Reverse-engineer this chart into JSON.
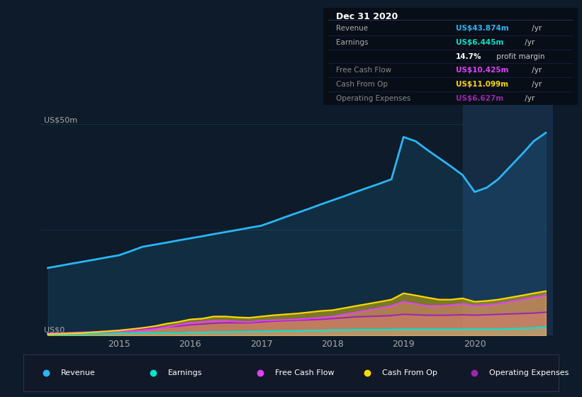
{
  "bg_color": "#0d1b2a",
  "chart_bg": "#0d1b2a",
  "title": "Dec 31 2020",
  "ylabel_top": "US$50m",
  "ylabel_bottom": "US$0",
  "x_ticks": [
    2015,
    2016,
    2017,
    2018,
    2019,
    2020
  ],
  "series": {
    "Revenue": {
      "color": "#29b6f6",
      "x": [
        2014.0,
        2014.17,
        2014.33,
        2014.5,
        2014.67,
        2014.83,
        2015.0,
        2015.17,
        2015.33,
        2015.5,
        2015.67,
        2015.83,
        2016.0,
        2016.17,
        2016.33,
        2016.5,
        2016.67,
        2016.83,
        2017.0,
        2017.17,
        2017.33,
        2017.5,
        2017.67,
        2017.83,
        2018.0,
        2018.17,
        2018.33,
        2018.5,
        2018.67,
        2018.83,
        2019.0,
        2019.17,
        2019.33,
        2019.5,
        2019.67,
        2019.83,
        2020.0,
        2020.17,
        2020.33,
        2020.5,
        2020.67,
        2020.83,
        2021.0
      ],
      "y": [
        16,
        16.5,
        17,
        17.5,
        18,
        18.5,
        19,
        20,
        21,
        21.5,
        22,
        22.5,
        23,
        23.5,
        24,
        24.5,
        25,
        25.5,
        26,
        27,
        28,
        29,
        30,
        31,
        32,
        33,
        34,
        35,
        36,
        37,
        47,
        46,
        44,
        42,
        40,
        38,
        34,
        35,
        37,
        40,
        43,
        46,
        48
      ]
    },
    "Earnings": {
      "color": "#00e5cc",
      "x": [
        2014.0,
        2014.17,
        2014.33,
        2014.5,
        2014.67,
        2014.83,
        2015.0,
        2015.17,
        2015.33,
        2015.5,
        2015.67,
        2015.83,
        2016.0,
        2016.17,
        2016.33,
        2016.5,
        2016.67,
        2016.83,
        2017.0,
        2017.17,
        2017.33,
        2017.5,
        2017.67,
        2017.83,
        2018.0,
        2018.17,
        2018.33,
        2018.5,
        2018.67,
        2018.83,
        2019.0,
        2019.17,
        2019.33,
        2019.5,
        2019.67,
        2019.83,
        2020.0,
        2020.17,
        2020.33,
        2020.5,
        2020.67,
        2020.83,
        2021.0
      ],
      "y": [
        0.2,
        0.2,
        0.3,
        0.3,
        0.4,
        0.4,
        0.5,
        0.5,
        0.6,
        0.6,
        0.6,
        0.6,
        0.7,
        0.7,
        0.8,
        0.8,
        0.9,
        0.9,
        1.0,
        1.0,
        1.1,
        1.1,
        1.2,
        1.2,
        1.3,
        1.3,
        1.4,
        1.4,
        1.4,
        1.4,
        1.5,
        1.5,
        1.5,
        1.5,
        1.5,
        1.5,
        1.5,
        1.5,
        1.5,
        1.6,
        1.7,
        1.8,
        2.0
      ]
    },
    "Free Cash Flow": {
      "color": "#e040fb",
      "x": [
        2014.0,
        2014.17,
        2014.33,
        2014.5,
        2014.67,
        2014.83,
        2015.0,
        2015.17,
        2015.33,
        2015.5,
        2015.67,
        2015.83,
        2016.0,
        2016.17,
        2016.33,
        2016.5,
        2016.67,
        2016.83,
        2017.0,
        2017.17,
        2017.33,
        2017.5,
        2017.67,
        2017.83,
        2018.0,
        2018.17,
        2018.33,
        2018.5,
        2018.67,
        2018.83,
        2019.0,
        2019.17,
        2019.33,
        2019.5,
        2019.67,
        2019.83,
        2020.0,
        2020.17,
        2020.33,
        2020.5,
        2020.67,
        2020.83,
        2021.0
      ],
      "y": [
        0.5,
        0.5,
        0.6,
        0.7,
        0.8,
        0.9,
        1.0,
        1.1,
        1.2,
        1.5,
        2.0,
        2.5,
        3.0,
        3.2,
        3.5,
        3.5,
        3.3,
        3.2,
        3.5,
        3.6,
        3.7,
        3.8,
        4.0,
        4.2,
        4.5,
        5.0,
        5.5,
        6.0,
        6.5,
        7.0,
        8.0,
        7.5,
        7.0,
        7.0,
        7.2,
        7.5,
        7.0,
        7.2,
        7.5,
        8.0,
        8.5,
        9.0,
        9.5
      ]
    },
    "Cash From Op": {
      "color": "#ffd700",
      "x": [
        2014.0,
        2014.17,
        2014.33,
        2014.5,
        2014.67,
        2014.83,
        2015.0,
        2015.17,
        2015.33,
        2015.5,
        2015.67,
        2015.83,
        2016.0,
        2016.17,
        2016.33,
        2016.5,
        2016.67,
        2016.83,
        2017.0,
        2017.17,
        2017.33,
        2017.5,
        2017.67,
        2017.83,
        2018.0,
        2018.17,
        2018.33,
        2018.5,
        2018.67,
        2018.83,
        2019.0,
        2019.17,
        2019.33,
        2019.5,
        2019.67,
        2019.83,
        2020.0,
        2020.17,
        2020.33,
        2020.5,
        2020.67,
        2020.83,
        2021.0
      ],
      "y": [
        0.3,
        0.4,
        0.5,
        0.6,
        0.8,
        1.0,
        1.2,
        1.5,
        1.8,
        2.2,
        2.8,
        3.2,
        3.8,
        4.0,
        4.5,
        4.5,
        4.3,
        4.2,
        4.5,
        4.8,
        5.0,
        5.2,
        5.5,
        5.8,
        6.0,
        6.5,
        7.0,
        7.5,
        8.0,
        8.5,
        10.0,
        9.5,
        9.0,
        8.5,
        8.5,
        8.8,
        8.0,
        8.2,
        8.5,
        9.0,
        9.5,
        10.0,
        10.5
      ]
    },
    "Operating Expenses": {
      "color": "#9c27b0",
      "x": [
        2014.0,
        2014.17,
        2014.33,
        2014.5,
        2014.67,
        2014.83,
        2015.0,
        2015.17,
        2015.33,
        2015.5,
        2015.67,
        2015.83,
        2016.0,
        2016.17,
        2016.33,
        2016.5,
        2016.67,
        2016.83,
        2017.0,
        2017.17,
        2017.33,
        2017.5,
        2017.67,
        2017.83,
        2018.0,
        2018.17,
        2018.33,
        2018.5,
        2018.67,
        2018.83,
        2019.0,
        2019.17,
        2019.33,
        2019.5,
        2019.67,
        2019.83,
        2020.0,
        2020.17,
        2020.33,
        2020.5,
        2020.67,
        2020.83,
        2021.0
      ],
      "y": [
        0.5,
        0.6,
        0.7,
        0.8,
        0.9,
        1.0,
        1.2,
        1.4,
        1.6,
        1.8,
        2.0,
        2.2,
        2.5,
        2.7,
        2.9,
        3.0,
        3.0,
        3.0,
        3.2,
        3.4,
        3.5,
        3.6,
        3.7,
        3.8,
        4.0,
        4.2,
        4.4,
        4.5,
        4.6,
        4.7,
        5.0,
        4.9,
        4.8,
        4.8,
        4.8,
        4.9,
        4.8,
        4.9,
        5.0,
        5.1,
        5.2,
        5.3,
        5.5
      ]
    }
  },
  "table_rows": [
    {
      "label": "Revenue",
      "value": "US$43.874m",
      "unit": " /yr",
      "value_color": "#29b6f6",
      "label_color": "#aaaaaa"
    },
    {
      "label": "Earnings",
      "value": "US$6.445m",
      "unit": " /yr",
      "value_color": "#00e5cc",
      "label_color": "#aaaaaa"
    },
    {
      "label": "",
      "value": "14.7%",
      "unit": " profit margin",
      "value_color": "#ffffff",
      "label_color": "#aaaaaa"
    },
    {
      "label": "Free Cash Flow",
      "value": "US$10.425m",
      "unit": " /yr",
      "value_color": "#e040fb",
      "label_color": "#888888"
    },
    {
      "label": "Cash From Op",
      "value": "US$11.099m",
      "unit": " /yr",
      "value_color": "#ffd700",
      "label_color": "#888888"
    },
    {
      "label": "Operating Expenses",
      "value": "US$6.627m",
      "unit": " /yr",
      "value_color": "#9c27b0",
      "label_color": "#888888"
    }
  ],
  "legend": [
    {
      "label": "Revenue",
      "color": "#29b6f6"
    },
    {
      "label": "Earnings",
      "color": "#00e5cc"
    },
    {
      "label": "Free Cash Flow",
      "color": "#e040fb"
    },
    {
      "label": "Cash From Op",
      "color": "#ffd700"
    },
    {
      "label": "Operating Expenses",
      "color": "#9c27b0"
    }
  ],
  "ylim": [
    0,
    55
  ],
  "xlim": [
    2013.9,
    2021.1
  ],
  "highlight_start": 2019.83
}
